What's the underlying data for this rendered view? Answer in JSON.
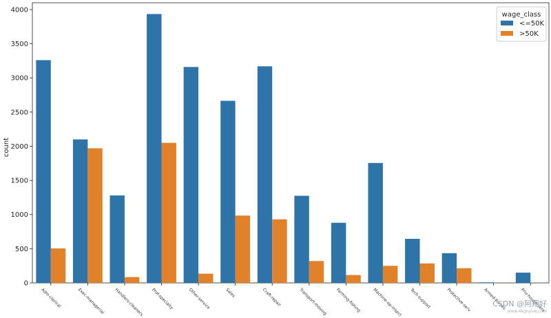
{
  "chart_data": {
    "type": "bar",
    "categories": [
      "Adm-clerical",
      "Exec-managerial",
      "Handlers-cleaners",
      "Prof-specialty",
      "Other-service",
      "Sales",
      "Craft-repair",
      "Transport-moving",
      "Farming-fishing",
      "Machine-op-inspct",
      "Tech-support",
      "Protective-serv",
      "Armed-Forces",
      "Priv-house-serv"
    ],
    "series": [
      {
        "name": "<=50K",
        "color": "#2f74a8",
        "values": [
          3260,
          2100,
          1280,
          3935,
          3160,
          2665,
          3170,
          1275,
          880,
          1755,
          645,
          435,
          8,
          150
        ]
      },
      {
        "name": ">50K",
        "color": "#e1822b",
        "values": [
          505,
          1970,
          85,
          2050,
          135,
          985,
          930,
          320,
          115,
          250,
          285,
          215,
          1,
          1
        ]
      }
    ],
    "title": "",
    "xlabel": "",
    "ylabel": "count",
    "ylim": [
      0,
      4100
    ],
    "yticks": [
      0,
      500,
      1000,
      1500,
      2000,
      2500,
      3000,
      3500,
      4000
    ],
    "legend": {
      "title": "wage_class",
      "position": "top-right"
    },
    "grid": false
  },
  "watermark": {
    "text": "CSDN @阿翔好",
    "subtext": "www.4kgnpvw.com"
  }
}
